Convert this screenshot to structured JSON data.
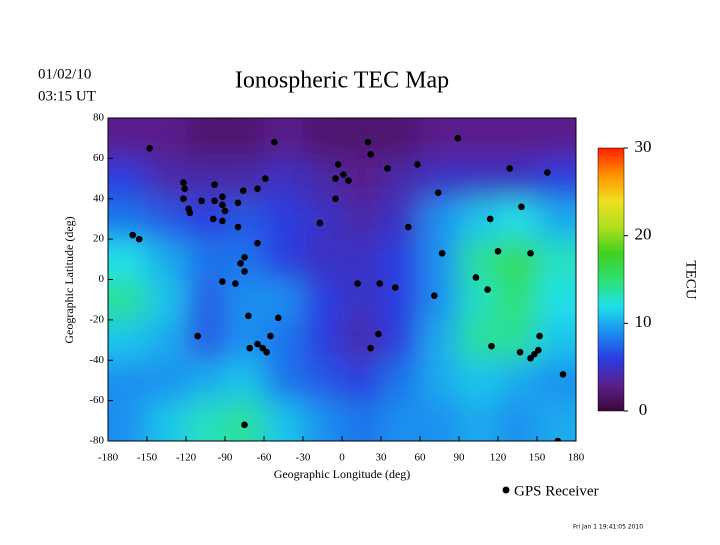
{
  "chart_data": {
    "type": "heatmap",
    "title": "Ionospheric TEC Map",
    "date": "01/02/10",
    "time": "03:15 UT",
    "xlabel": "Geographic Longitude (deg)",
    "ylabel": "Geographic Latitude (deg)",
    "xlim": [
      -180,
      180
    ],
    "ylim": [
      -80,
      80
    ],
    "xticks": [
      -180,
      -150,
      -120,
      -90,
      -60,
      -30,
      0,
      30,
      60,
      90,
      120,
      150,
      180
    ],
    "yticks": [
      -80,
      -60,
      -40,
      -20,
      0,
      20,
      40,
      60,
      80
    ],
    "lon_centers": [
      -165,
      -135,
      -105,
      -75,
      -45,
      -15,
      15,
      45,
      75,
      105,
      135,
      165
    ],
    "lat_centers": [
      70,
      50,
      30,
      10,
      -10,
      -30,
      -50,
      -70
    ],
    "tec": [
      [
        3,
        3,
        2,
        2,
        3,
        2,
        2,
        2,
        3,
        3,
        3,
        3
      ],
      [
        6,
        4,
        4,
        4,
        5,
        4,
        3,
        4,
        5,
        5,
        5,
        6
      ],
      [
        8,
        7,
        6,
        7,
        6,
        5,
        4,
        5,
        9,
        11,
        12,
        10
      ],
      [
        12,
        10,
        8,
        8,
        6,
        5,
        5,
        6,
        9,
        14,
        16,
        13
      ],
      [
        14,
        11,
        7,
        9,
        9,
        6,
        5,
        6,
        9,
        13,
        15,
        12
      ],
      [
        11,
        10,
        7,
        9,
        8,
        6,
        4,
        6,
        10,
        14,
        14,
        11
      ],
      [
        9,
        9,
        10,
        11,
        8,
        7,
        6,
        8,
        10,
        11,
        10,
        9
      ],
      [
        9,
        11,
        13,
        14,
        11,
        9,
        8,
        9,
        9,
        10,
        9,
        10
      ]
    ],
    "clim": [
      0,
      30
    ],
    "colorscale": [
      "#3a0838",
      "#5a1f8c",
      "#2a3de0",
      "#1a90f0",
      "#20e0e8",
      "#30e070",
      "#40d020",
      "#b0e020",
      "#f0e020",
      "#ff9000",
      "#ff2000"
    ],
    "colorbar_label": "TECU",
    "colorbar_ticks": [
      0,
      10,
      20,
      30
    ],
    "legend": "GPS Receiver",
    "receiver_color": "#000000",
    "receivers": {
      "lon": [
        -148,
        -52,
        -122,
        -121,
        -122,
        -118,
        -117,
        -108,
        -98,
        -98,
        -92,
        -92,
        -80,
        -76,
        -65,
        -59,
        -99,
        -90,
        -92,
        -80,
        -65,
        -161,
        -156,
        -75,
        -82,
        -92,
        -75,
        -78,
        -72,
        -71,
        -65,
        -61,
        -58,
        -55,
        -49,
        -111,
        -75,
        -3,
        -5,
        1,
        5,
        20,
        22,
        35,
        58,
        89,
        74,
        -5,
        -17,
        51,
        77,
        12,
        29,
        41,
        28,
        22,
        71,
        103,
        112,
        114,
        129,
        138,
        120,
        145,
        115,
        137,
        145,
        148,
        151,
        152,
        158,
        170,
        166
      ],
      "lat": [
        65,
        68,
        48,
        45,
        40,
        35,
        33,
        39,
        47,
        39,
        41,
        37,
        38,
        44,
        45,
        50,
        30,
        34,
        29,
        26,
        18,
        22,
        20,
        4,
        -2,
        -1,
        11,
        8,
        -18,
        -34,
        -32,
        -34,
        -36,
        -28,
        -19,
        -28,
        -72,
        57,
        50,
        52,
        49,
        68,
        62,
        55,
        57,
        70,
        43,
        40,
        28,
        26,
        13,
        -2,
        -2,
        -4,
        -27,
        -34,
        -8,
        1,
        -5,
        30,
        55,
        36,
        14,
        13,
        -33,
        -36,
        -39,
        -37,
        -35,
        -28,
        53,
        -47,
        -80
      ]
    },
    "timestamp": "Fri Jan  1 19:41:05 2010"
  }
}
